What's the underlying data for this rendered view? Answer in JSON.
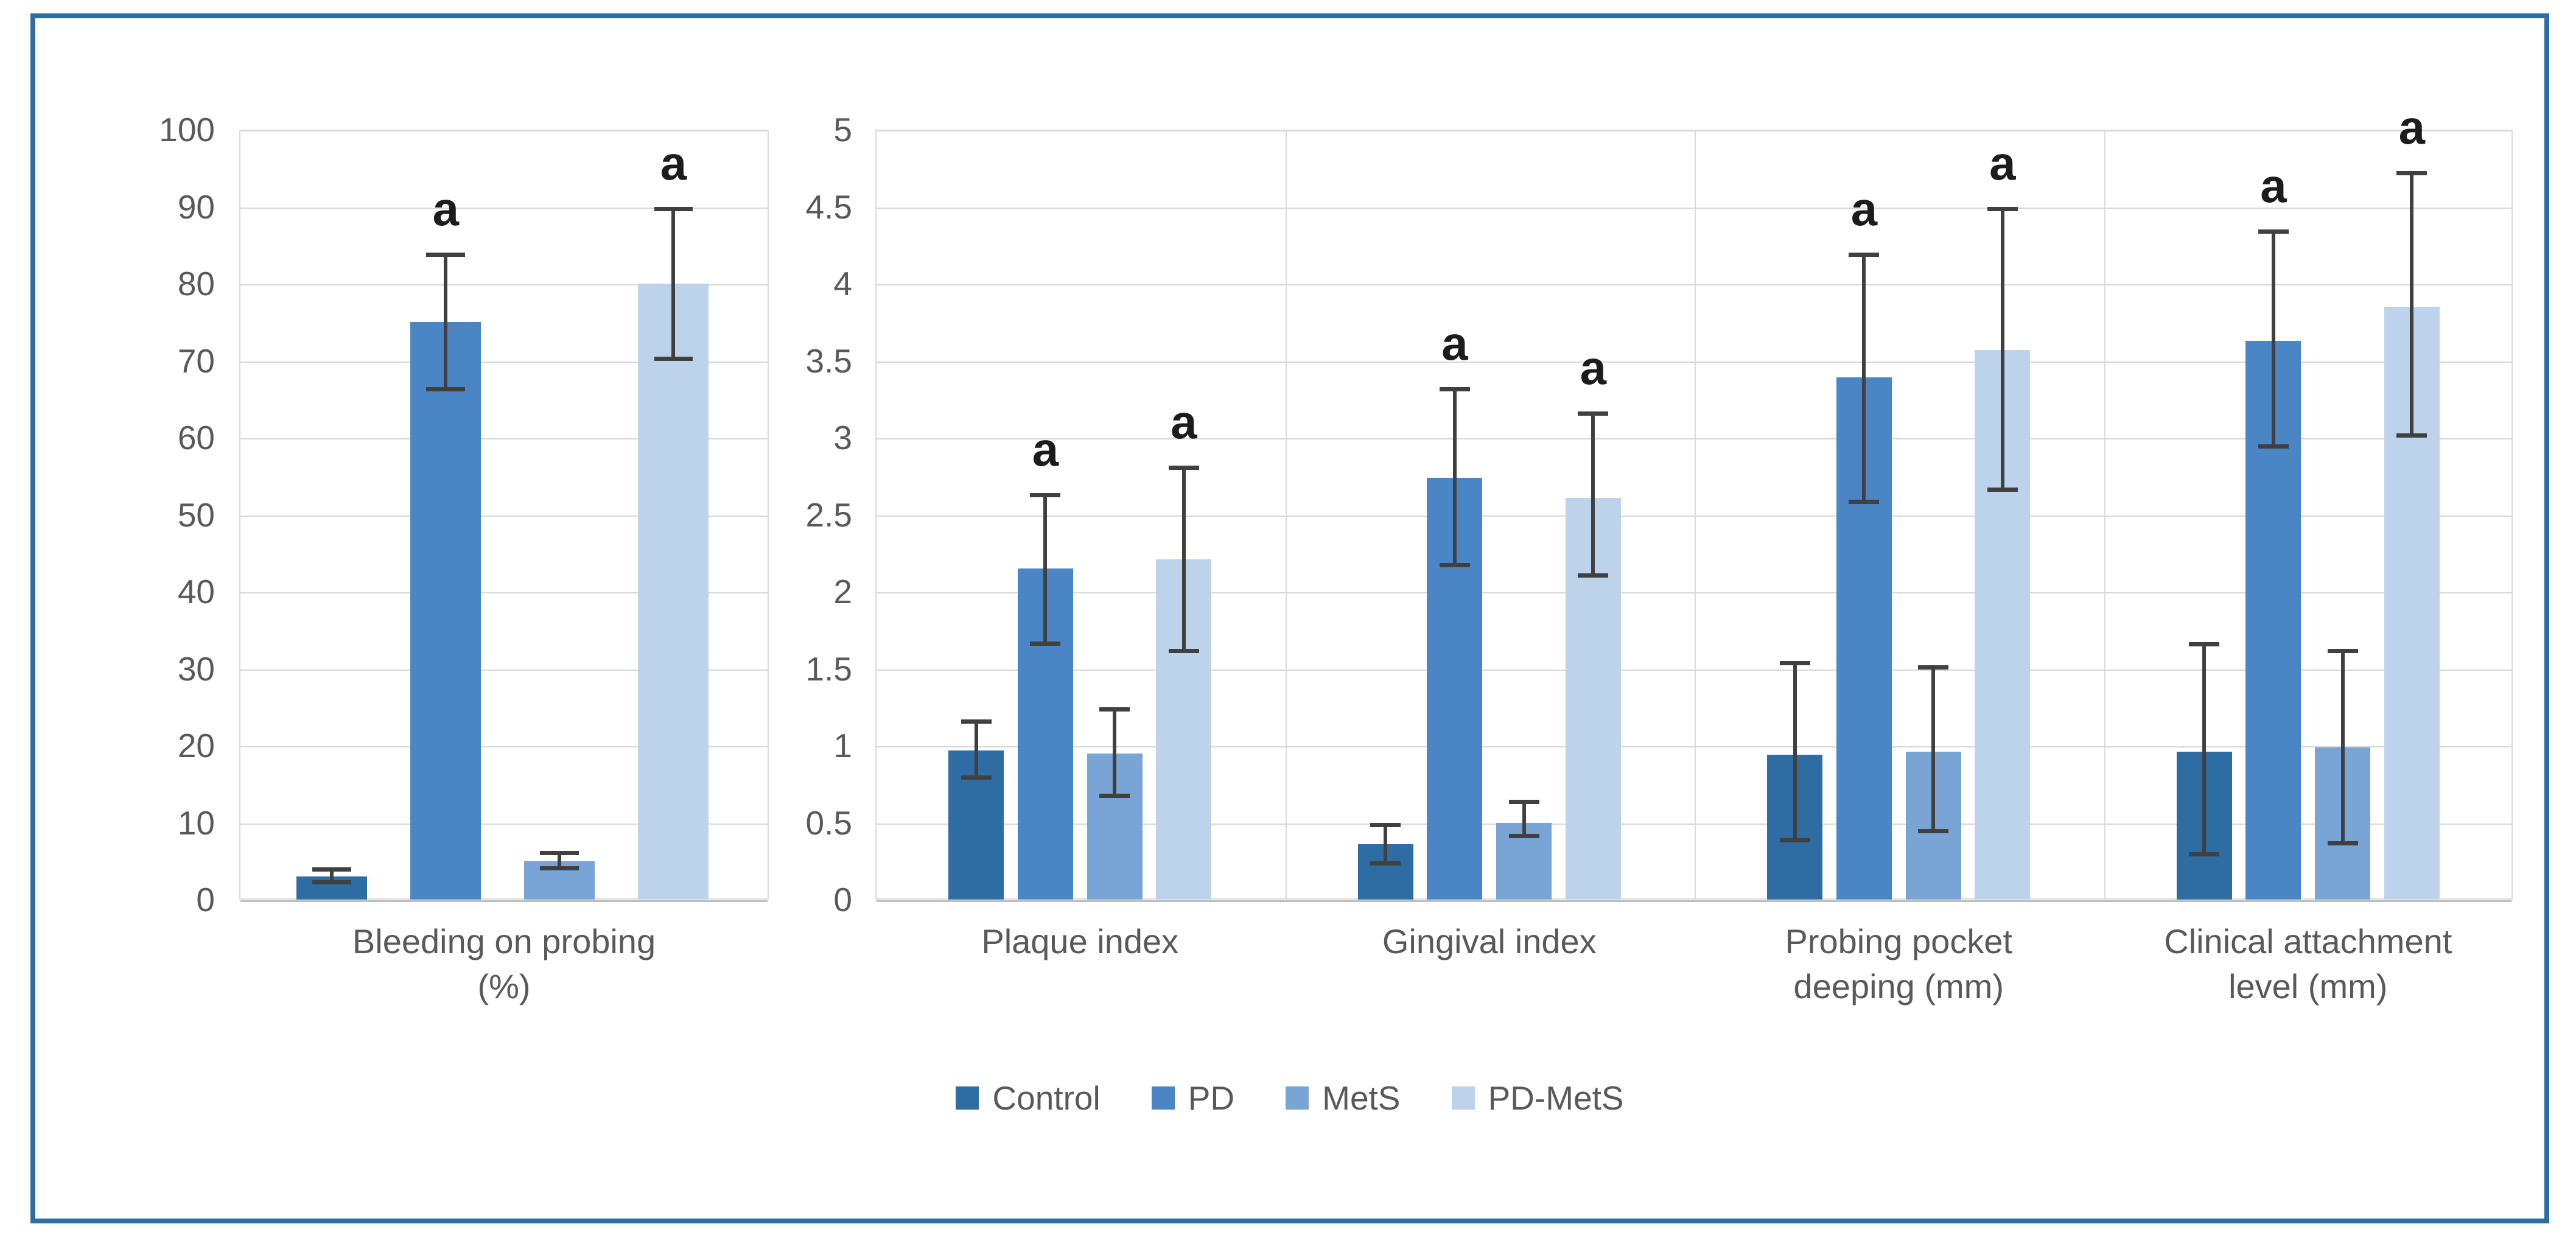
{
  "figure": {
    "border_color": "#2E6DA4",
    "background_color": "#FFFFFF",
    "text_color": "#595959",
    "gridline_color": "#D8D8D8",
    "axis_line_color": "#BFBFBF",
    "error_bar_color": "#404040",
    "significance_label": "a"
  },
  "legend": {
    "items": [
      {
        "label": "Control",
        "color": "#2E6DA4"
      },
      {
        "label": "PD",
        "color": "#4A86C5"
      },
      {
        "label": "MetS",
        "color": "#79A4D6"
      },
      {
        "label": "PD-MetS",
        "color": "#BDD2EB"
      }
    ]
  },
  "chart_data": [
    {
      "type": "bar",
      "title": "",
      "categories": [
        "Bleeding on probing\n(%)"
      ],
      "ylim": [
        0,
        100
      ],
      "ytick_step": 10,
      "ytick_labels": [
        "0",
        "10",
        "20",
        "30",
        "40",
        "50",
        "60",
        "70",
        "80",
        "90",
        "100"
      ],
      "grid": true,
      "legend_position": "bottom-shared",
      "series": [
        {
          "name": "Control",
          "color": "#2E6DA4",
          "values": [
            3
          ],
          "err_lo": [
            2
          ],
          "err_hi": [
            4.2
          ],
          "sig": [
            false
          ]
        },
        {
          "name": "PD",
          "color": "#4A86C5",
          "values": [
            75
          ],
          "err_lo": [
            66
          ],
          "err_hi": [
            84
          ],
          "sig": [
            true
          ]
        },
        {
          "name": "MetS",
          "color": "#79A4D6",
          "values": [
            5
          ],
          "err_lo": [
            3.8
          ],
          "err_hi": [
            6.3
          ],
          "sig": [
            false
          ]
        },
        {
          "name": "PD-MetS",
          "color": "#BDD2EB",
          "values": [
            80
          ],
          "err_lo": [
            70
          ],
          "err_hi": [
            90
          ],
          "sig": [
            true
          ]
        }
      ]
    },
    {
      "type": "bar",
      "title": "",
      "categories": [
        "Plaque index",
        "Gingival index",
        "Probing pocket\ndeeping (mm)",
        "Clinical attachment\nlevel (mm)"
      ],
      "ylim": [
        0,
        5
      ],
      "ytick_step": 0.5,
      "ytick_labels": [
        "0",
        "0.5",
        "1",
        "1.5",
        "2",
        "2.5",
        "3",
        "3.5",
        "4",
        "4.5",
        "5"
      ],
      "grid": true,
      "legend_position": "bottom-shared",
      "series": [
        {
          "name": "Control",
          "color": "#2E6DA4",
          "values": [
            0.97,
            0.36,
            0.94,
            0.96
          ],
          "err_lo": [
            0.78,
            0.22,
            0.37,
            0.28
          ],
          "err_hi": [
            1.17,
            0.5,
            1.55,
            1.67
          ],
          "sig": [
            false,
            false,
            false,
            false
          ]
        },
        {
          "name": "PD",
          "color": "#4A86C5",
          "values": [
            2.15,
            2.74,
            3.39,
            3.63
          ],
          "err_lo": [
            1.65,
            2.16,
            2.57,
            2.93
          ],
          "err_hi": [
            2.64,
            3.33,
            4.2,
            4.35
          ],
          "sig": [
            true,
            true,
            true,
            true
          ]
        },
        {
          "name": "MetS",
          "color": "#79A4D6",
          "values": [
            0.95,
            0.5,
            0.96,
            0.99
          ],
          "err_lo": [
            0.66,
            0.4,
            0.43,
            0.35
          ],
          "err_hi": [
            1.25,
            0.65,
            1.52,
            1.63
          ],
          "sig": [
            false,
            false,
            false,
            false
          ]
        },
        {
          "name": "PD-MetS",
          "color": "#BDD2EB",
          "values": [
            2.21,
            2.61,
            3.57,
            3.85
          ],
          "err_lo": [
            1.6,
            2.09,
            2.65,
            3.0
          ],
          "err_hi": [
            2.82,
            3.17,
            4.5,
            4.73
          ],
          "sig": [
            true,
            true,
            true,
            true
          ]
        }
      ]
    }
  ]
}
